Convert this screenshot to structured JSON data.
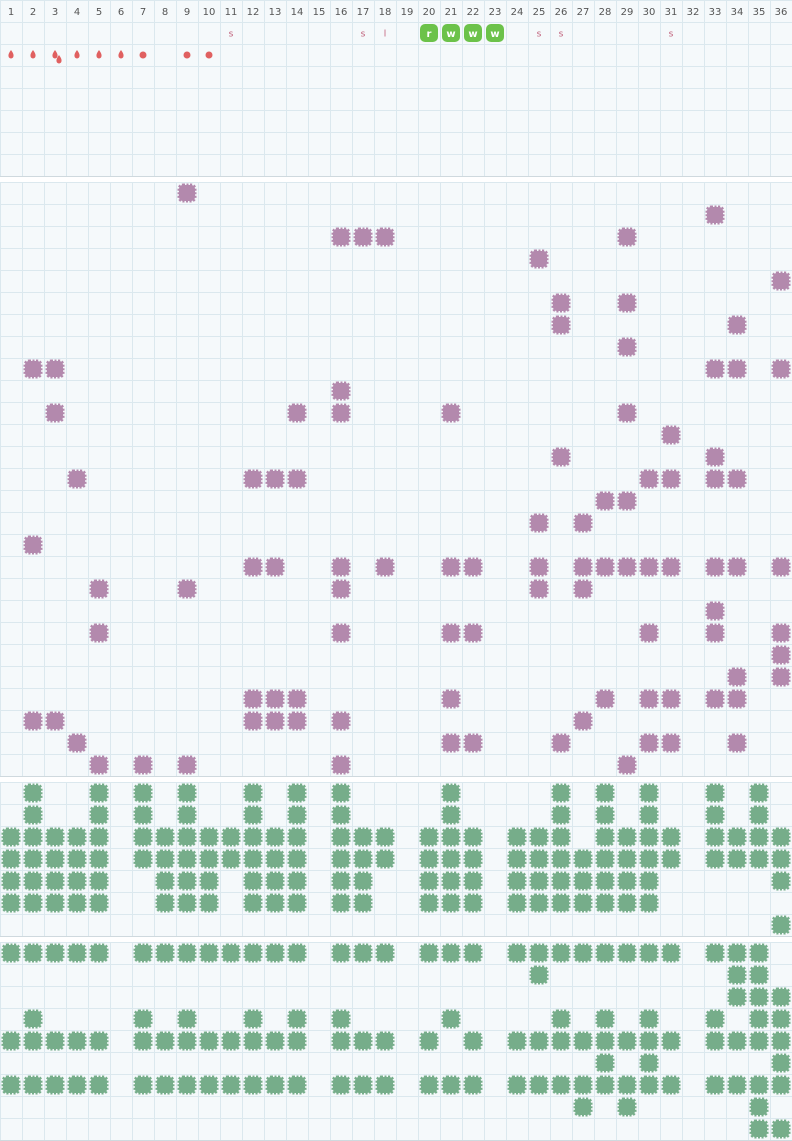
{
  "header": {
    "columns": [
      "1",
      "2",
      "3",
      "4",
      "5",
      "6",
      "7",
      "8",
      "9",
      "10",
      "11",
      "12",
      "13",
      "14",
      "15",
      "16",
      "17",
      "18",
      "19",
      "20",
      "21",
      "22",
      "23",
      "24",
      "25",
      "26",
      "27",
      "28",
      "29",
      "30",
      "31",
      "32",
      "33",
      "34",
      "35",
      "36"
    ]
  },
  "markers": [
    "s",
    "s",
    "l",
    "r",
    "w",
    "w",
    "w",
    "s",
    "s",
    "s"
  ]
}
